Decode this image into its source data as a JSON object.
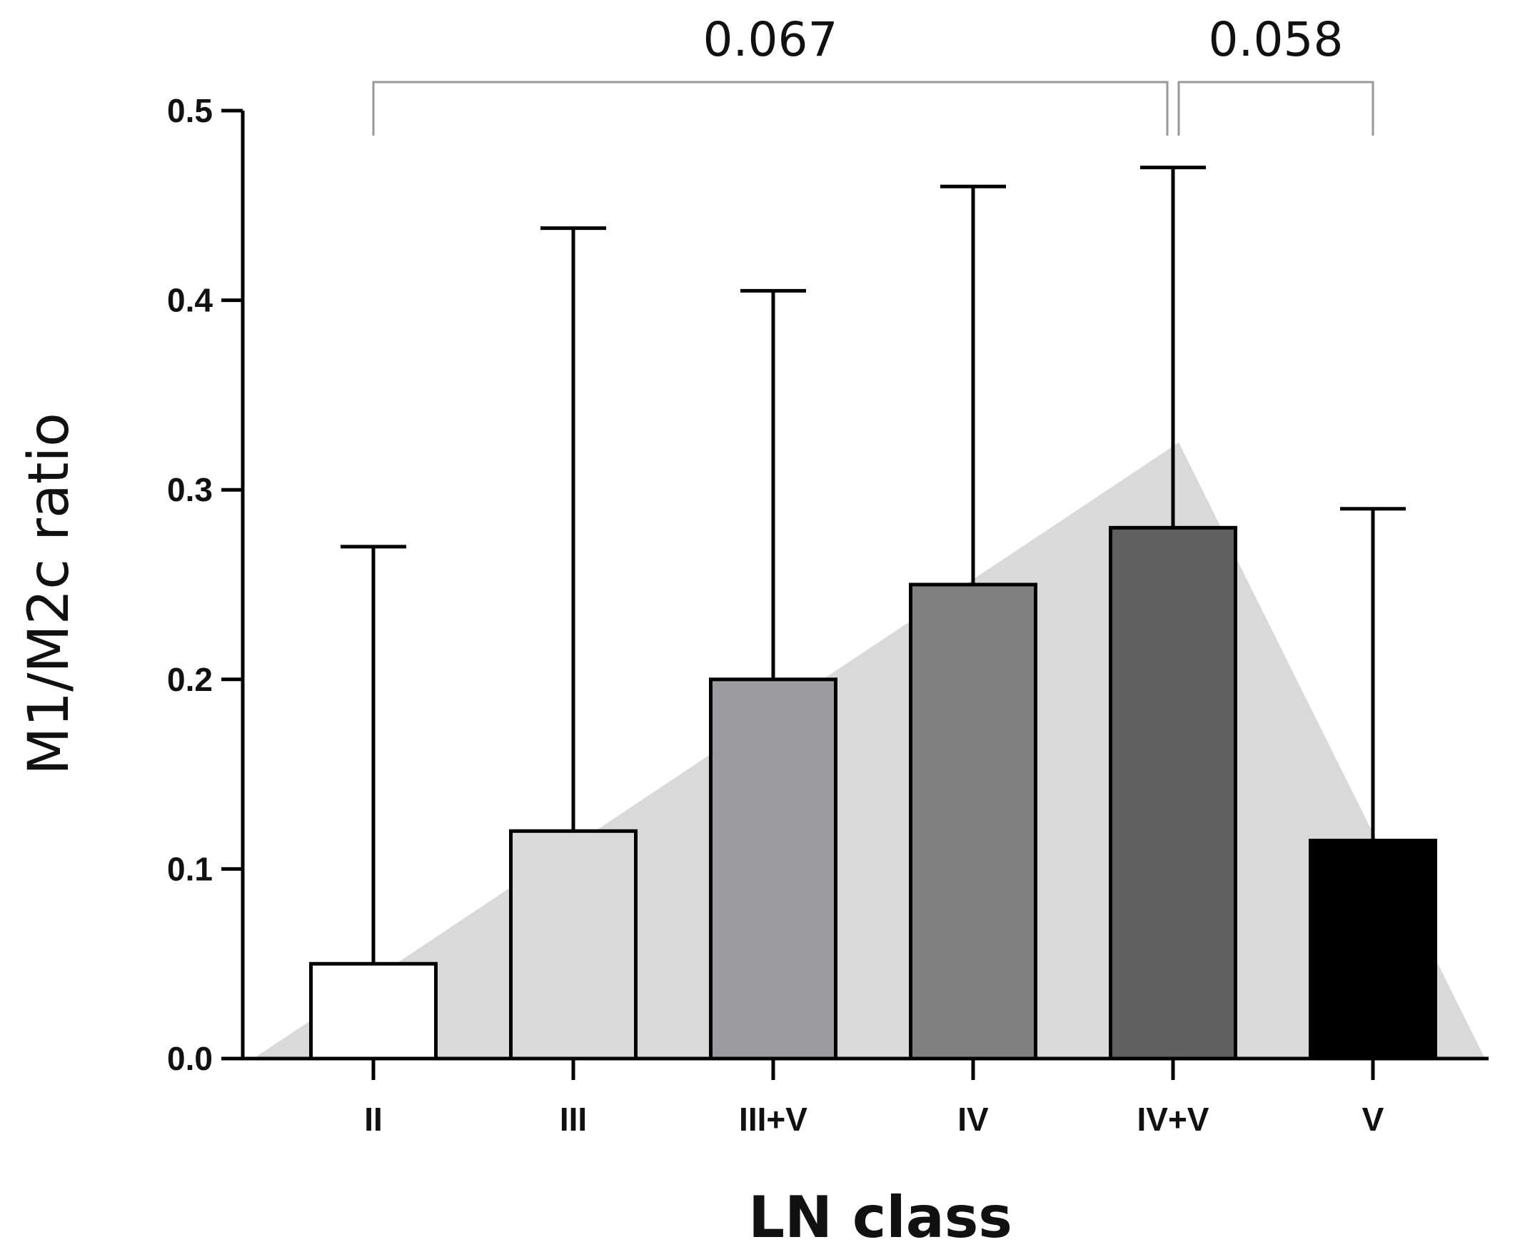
{
  "chart_data": {
    "type": "bar",
    "title": "",
    "xlabel": "LN class",
    "ylabel": "M1/M2c ratio",
    "ylim": [
      0,
      0.5
    ],
    "yticks": [
      "0.0",
      "0.1",
      "0.2",
      "0.3",
      "0.4",
      "0.5"
    ],
    "categories": [
      "II",
      "III",
      "III+V",
      "IV",
      "IV+V",
      "V"
    ],
    "values": [
      0.05,
      0.12,
      0.2,
      0.25,
      0.28,
      0.115
    ],
    "error_upper": [
      0.27,
      0.438,
      0.405,
      0.46,
      0.47,
      0.29
    ],
    "bar_colors": [
      "#ffffff",
      "#d9d9d9",
      "#9c9ca0",
      "#808080",
      "#606060",
      "#000000"
    ],
    "background_trend": {
      "description": "grey triangular trend shading",
      "color": "#d9d9d9",
      "peak_value": 0.325,
      "peak_category": "IV+V"
    },
    "comparisons": [
      {
        "from": "II",
        "to": "IV+V",
        "p_value": "0.067"
      },
      {
        "from": "IV+V",
        "to": "V",
        "p_value": "0.058"
      }
    ]
  }
}
